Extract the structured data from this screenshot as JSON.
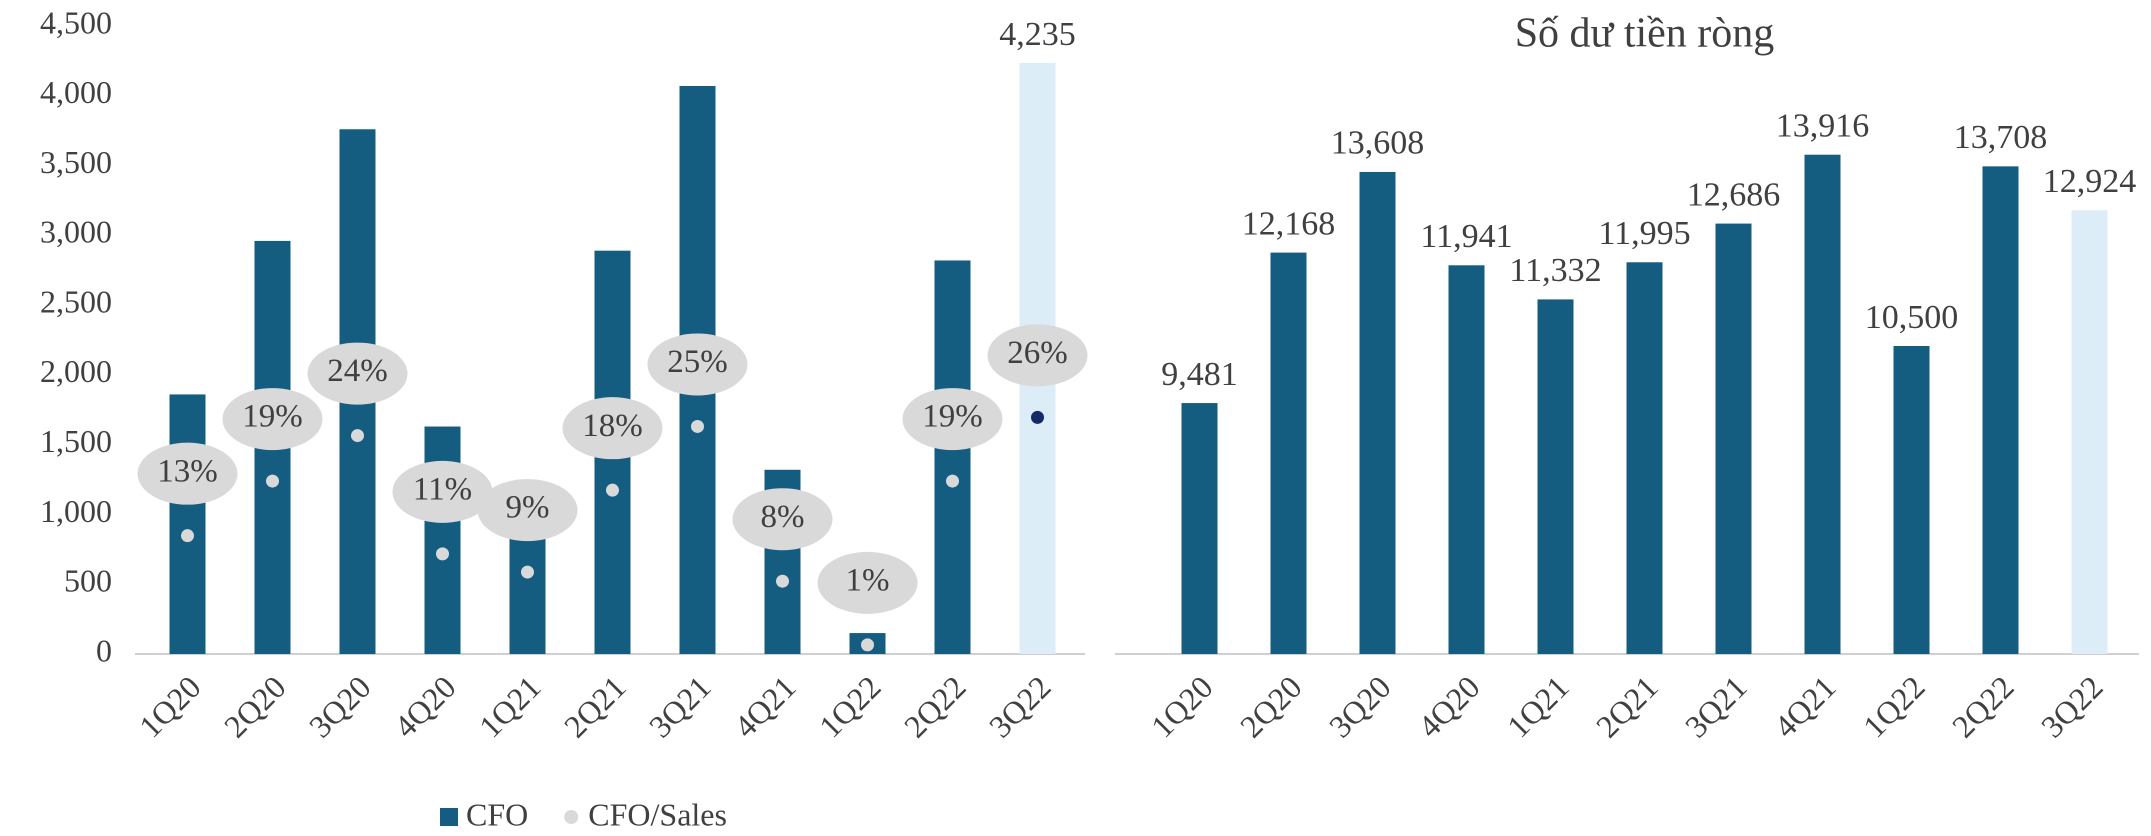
{
  "chart_data": [
    {
      "type": "bar",
      "categories": [
        "1Q20",
        "2Q20",
        "3Q20",
        "4Q20",
        "1Q21",
        "2Q21",
        "3Q21",
        "4Q21",
        "1Q22",
        "2Q22",
        "3Q22"
      ],
      "series": [
        {
          "name": "CFO",
          "color": "#155d80",
          "colors": [
            "#155d80",
            "#155d80",
            "#155d80",
            "#155d80",
            "#155d80",
            "#155d80",
            "#155d80",
            "#155d80",
            "#155d80",
            "#155d80",
            "#dcedf8"
          ],
          "values": [
            1860,
            2960,
            3760,
            1630,
            1190,
            2890,
            4070,
            1320,
            150,
            2820,
            4235
          ],
          "value_labels": [
            null,
            null,
            null,
            null,
            null,
            null,
            null,
            null,
            null,
            null,
            "4,235"
          ]
        },
        {
          "name": "CFO/Sales",
          "type": "scatter",
          "axis": "y2",
          "color": "#d9d9d9",
          "colors": [
            "#d9d9d9",
            "#d9d9d9",
            "#d9d9d9",
            "#d9d9d9",
            "#d9d9d9",
            "#d9d9d9",
            "#d9d9d9",
            "#d9d9d9",
            "#d9d9d9",
            "#d9d9d9",
            "#142a66"
          ],
          "values": [
            13,
            19,
            24,
            11,
            9,
            18,
            25,
            8,
            1,
            19,
            26
          ],
          "value_labels": [
            "13%",
            "19%",
            "24%",
            "11%",
            "9%",
            "18%",
            "25%",
            "8%",
            "1%",
            "19%",
            "26%"
          ]
        }
      ],
      "ylim": [
        0,
        4500
      ],
      "yticks": [
        0,
        500,
        {
          "value": 1000,
          "label": "1,000"
        },
        {
          "value": 1500,
          "label": "1,500"
        },
        {
          "value": 2000,
          "label": "2,000"
        },
        {
          "value": 2500,
          "label": "2,500"
        },
        {
          "value": 3000,
          "label": "3,000"
        },
        {
          "value": 3500,
          "label": "3,500"
        },
        {
          "value": 4000,
          "label": "4,000"
        },
        {
          "value": 4500,
          "label": "4,500"
        }
      ],
      "y2lim": [
        0,
        69
      ],
      "legend": "bottom"
    },
    {
      "type": "bar",
      "title": "Số dư tiền ròng",
      "categories": [
        "1Q20",
        "2Q20",
        "3Q20",
        "4Q20",
        "1Q21",
        "2Q21",
        "3Q21",
        "4Q21",
        "1Q22",
        "2Q22",
        "3Q22"
      ],
      "series": [
        {
          "colors": [
            "#155d80",
            "#155d80",
            "#155d80",
            "#155d80",
            "#155d80",
            "#155d80",
            "#155d80",
            "#155d80",
            "#155d80",
            "#155d80",
            "#dcedf8"
          ],
          "label_colors": [
            "#333333",
            "#333333",
            "#333333",
            "#333333",
            "#333333",
            "#333333",
            "#333333",
            "#333333",
            "#333333",
            "#333333",
            "#142a66"
          ],
          "values": [
            9481,
            12168,
            13608,
            11941,
            11332,
            11995,
            12686,
            13916,
            10500,
            13708,
            12924
          ],
          "value_labels": [
            "9,481",
            "12,168",
            "13,608",
            "11,941",
            "11,332",
            "11,995",
            "12,686",
            "13,916",
            "10,500",
            "13,708",
            "12,924"
          ]
        }
      ],
      "ylim": [
        5000,
        15000
      ]
    }
  ]
}
